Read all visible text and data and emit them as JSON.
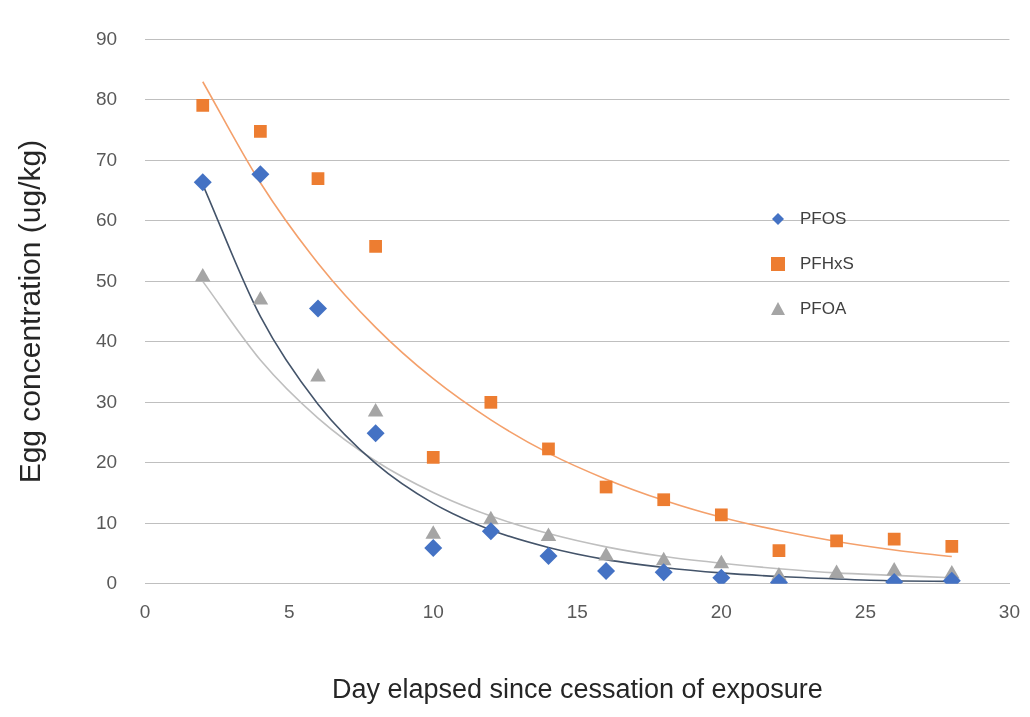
{
  "chart_data": {
    "type": "scatter",
    "xlabel": "Day elapsed since cessation of exposure",
    "ylabel": "Egg concentration (ug/kg)",
    "xlim": [
      0,
      30
    ],
    "xticks": [
      0,
      5,
      10,
      15,
      20,
      25,
      30
    ],
    "ylim": [
      0,
      90
    ],
    "yticks": [
      0,
      10,
      20,
      30,
      40,
      50,
      60,
      70,
      80,
      90
    ],
    "grid": "y",
    "legend": "right",
    "series": [
      {
        "name": "PFOS",
        "color": "#4472c4",
        "marker": "diamond",
        "x": [
          2,
          4,
          6,
          8,
          10,
          12,
          14,
          16,
          18,
          20,
          22,
          24,
          26,
          28
        ],
        "values": [
          66.4,
          67.7,
          45.5,
          24.9,
          5.9,
          8.7,
          4.6,
          2.1,
          1.9,
          1,
          0.2,
          null,
          0.3,
          0.5
        ]
      },
      {
        "name": "PFHxS",
        "color": "#ed7d31",
        "marker": "square",
        "x": [
          2,
          4,
          6,
          8,
          10,
          12,
          14,
          16,
          18,
          20,
          22,
          24,
          26,
          28
        ],
        "values": [
          79.1,
          74.8,
          67,
          55.8,
          20.9,
          30,
          22.3,
          16,
          13.9,
          11.4,
          5.5,
          7.1,
          7.4,
          6.2
        ]
      },
      {
        "name": "PFOA",
        "color": "#a5a5a5",
        "marker": "triangle",
        "x": [
          2,
          4,
          6,
          8,
          10,
          12,
          14,
          16,
          18,
          20,
          22,
          24,
          26,
          28
        ],
        "values": [
          50.7,
          46.9,
          34.2,
          28.4,
          8.2,
          10.6,
          7.8,
          4.6,
          3.8,
          3.3,
          1.3,
          1.7,
          2.1,
          1.6
        ]
      },
      {
        "type": "line",
        "color": "#44546a",
        "marker": "none",
        "x": [
          2,
          4,
          6,
          8,
          10,
          12,
          14,
          16,
          18,
          20,
          22,
          24,
          26,
          28
        ],
        "values": [
          66,
          44.2,
          29.7,
          19.9,
          13.3,
          8.9,
          6,
          4,
          2.7,
          1.8,
          1.2,
          0.8,
          0.5,
          0.4
        ]
      },
      {
        "type": "line",
        "color": "#f4a06b",
        "marker": "none",
        "x": [
          2,
          4,
          6,
          8,
          10,
          12,
          14,
          16,
          18,
          20,
          22,
          24,
          26,
          28
        ],
        "values": [
          83,
          66.3,
          53,
          42.4,
          33.9,
          27.1,
          21.6,
          17.3,
          13.8,
          11,
          8.8,
          7,
          5.6,
          4.5
        ]
      },
      {
        "type": "line",
        "color": "#bfbfbf",
        "marker": "none",
        "x": [
          2,
          4,
          6,
          8,
          10,
          12,
          14,
          16,
          18,
          20,
          22,
          24,
          26,
          28
        ],
        "values": [
          50,
          37,
          27.4,
          20.3,
          15.1,
          11.2,
          8.3,
          6.1,
          4.5,
          3.4,
          2.5,
          1.8,
          1.4,
          1
        ]
      }
    ]
  }
}
